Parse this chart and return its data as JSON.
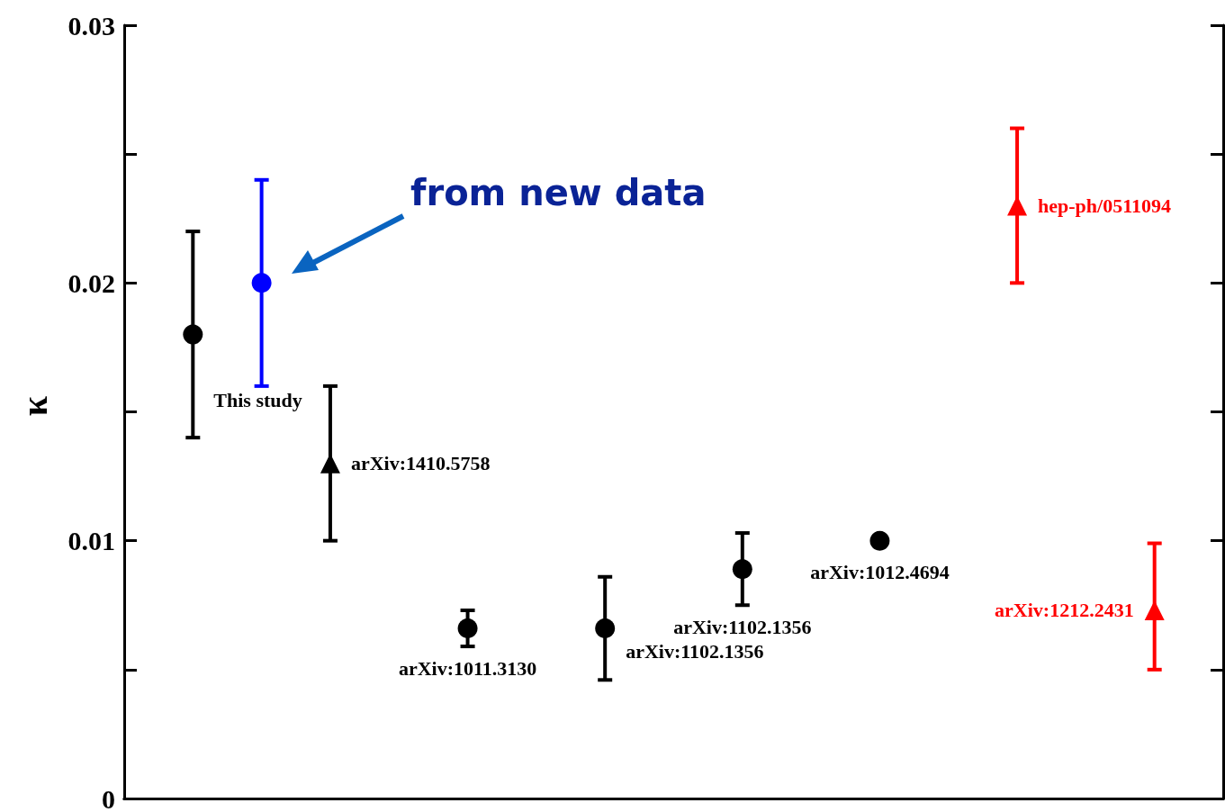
{
  "chart_data": {
    "type": "scatter",
    "ylabel": "κ",
    "categories": [
      null,
      null,
      null,
      null,
      null,
      null,
      null,
      null,
      null,
      null,
      null,
      null,
      null,
      null,
      null,
      null,
      null
    ],
    "ylim": [
      0,
      0.03
    ],
    "yticks": [
      0,
      {
        "value": 0.005,
        "label": null
      },
      0.01,
      {
        "value": 0.015,
        "label": null
      },
      0.02,
      {
        "value": 0.025,
        "label": null
      },
      0.03
    ],
    "tick_labels": "y",
    "grid": false,
    "legend": false,
    "annotations": [
      "from new data"
    ],
    "series": [
      {
        "name": "This study",
        "color": "#000000",
        "marker": "circle",
        "values": [
          null,
          0.018,
          null,
          null,
          null,
          null,
          null,
          null,
          null,
          null,
          null,
          null,
          null,
          null,
          null,
          null,
          null
        ],
        "errors": [
          null,
          [
            0.014,
            0.022
          ],
          null,
          null,
          null,
          null,
          null,
          null,
          null,
          null,
          null,
          null,
          null,
          null,
          null,
          null,
          null
        ]
      },
      {
        "color": "#0000ff",
        "marker": "circle",
        "values": [
          null,
          null,
          0.02,
          null,
          null,
          null,
          null,
          null,
          null,
          null,
          null,
          null,
          null,
          null,
          null,
          null,
          null
        ],
        "errors": [
          null,
          null,
          [
            0.016,
            0.024
          ],
          null,
          null,
          null,
          null,
          null,
          null,
          null,
          null,
          null,
          null,
          null,
          null,
          null,
          null
        ]
      },
      {
        "name": "arXiv:1410.5758",
        "color": "#000000",
        "marker": "triangle",
        "values": [
          null,
          null,
          null,
          0.013,
          null,
          null,
          null,
          null,
          null,
          null,
          null,
          null,
          null,
          null,
          null,
          null,
          null
        ],
        "errors": [
          null,
          null,
          null,
          [
            0.01,
            0.016
          ],
          null,
          null,
          null,
          null,
          null,
          null,
          null,
          null,
          null,
          null,
          null,
          null,
          null
        ]
      },
      {
        "name": "arXiv:1011.3130",
        "color": "#000000",
        "marker": "circle",
        "values": [
          null,
          null,
          null,
          null,
          null,
          0.0066,
          null,
          null,
          null,
          null,
          null,
          null,
          null,
          null,
          null,
          null,
          null
        ],
        "errors": [
          null,
          null,
          null,
          null,
          null,
          [
            0.0059,
            0.0073
          ],
          null,
          null,
          null,
          null,
          null,
          null,
          null,
          null,
          null,
          null,
          null
        ]
      },
      {
        "name": "arXiv:1102.1356",
        "color": "#000000",
        "marker": "circle",
        "values": [
          null,
          null,
          null,
          null,
          null,
          null,
          null,
          0.0066,
          null,
          null,
          null,
          null,
          null,
          null,
          null,
          null,
          null
        ],
        "errors": [
          null,
          null,
          null,
          null,
          null,
          null,
          null,
          [
            0.0046,
            0.0086
          ],
          null,
          null,
          null,
          null,
          null,
          null,
          null,
          null,
          null
        ]
      },
      {
        "name": "arXiv:1102.1356",
        "color": "#000000",
        "marker": "circle",
        "values": [
          null,
          null,
          null,
          null,
          null,
          null,
          null,
          null,
          null,
          0.0089,
          null,
          null,
          null,
          null,
          null,
          null,
          null
        ],
        "errors": [
          null,
          null,
          null,
          null,
          null,
          null,
          null,
          null,
          null,
          [
            0.0075,
            0.0103
          ],
          null,
          null,
          null,
          null,
          null,
          null,
          null
        ]
      },
      {
        "name": "arXiv:1012.4694",
        "color": "#000000",
        "marker": "circle",
        "values": [
          null,
          null,
          null,
          null,
          null,
          null,
          null,
          null,
          null,
          null,
          null,
          0.01,
          null,
          null,
          null,
          null,
          null
        ]
      },
      {
        "name": "hep-ph/0511094",
        "color": "#ff0000",
        "marker": "triangle",
        "values": [
          null,
          null,
          null,
          null,
          null,
          null,
          null,
          null,
          null,
          null,
          null,
          null,
          null,
          0.023,
          null,
          null,
          null
        ],
        "errors": [
          null,
          null,
          null,
          null,
          null,
          null,
          null,
          null,
          null,
          null,
          null,
          null,
          null,
          [
            0.02,
            0.026
          ],
          null,
          null,
          null
        ]
      },
      {
        "name": "arXiv:1212.2431",
        "color": "#ff0000",
        "marker": "triangle",
        "values": [
          null,
          null,
          null,
          null,
          null,
          null,
          null,
          null,
          null,
          null,
          null,
          null,
          null,
          null,
          null,
          0.0073,
          null
        ],
        "errors": [
          null,
          null,
          null,
          null,
          null,
          null,
          null,
          null,
          null,
          null,
          null,
          null,
          null,
          null,
          null,
          [
            0.005,
            0.0099
          ],
          null
        ]
      }
    ]
  }
}
